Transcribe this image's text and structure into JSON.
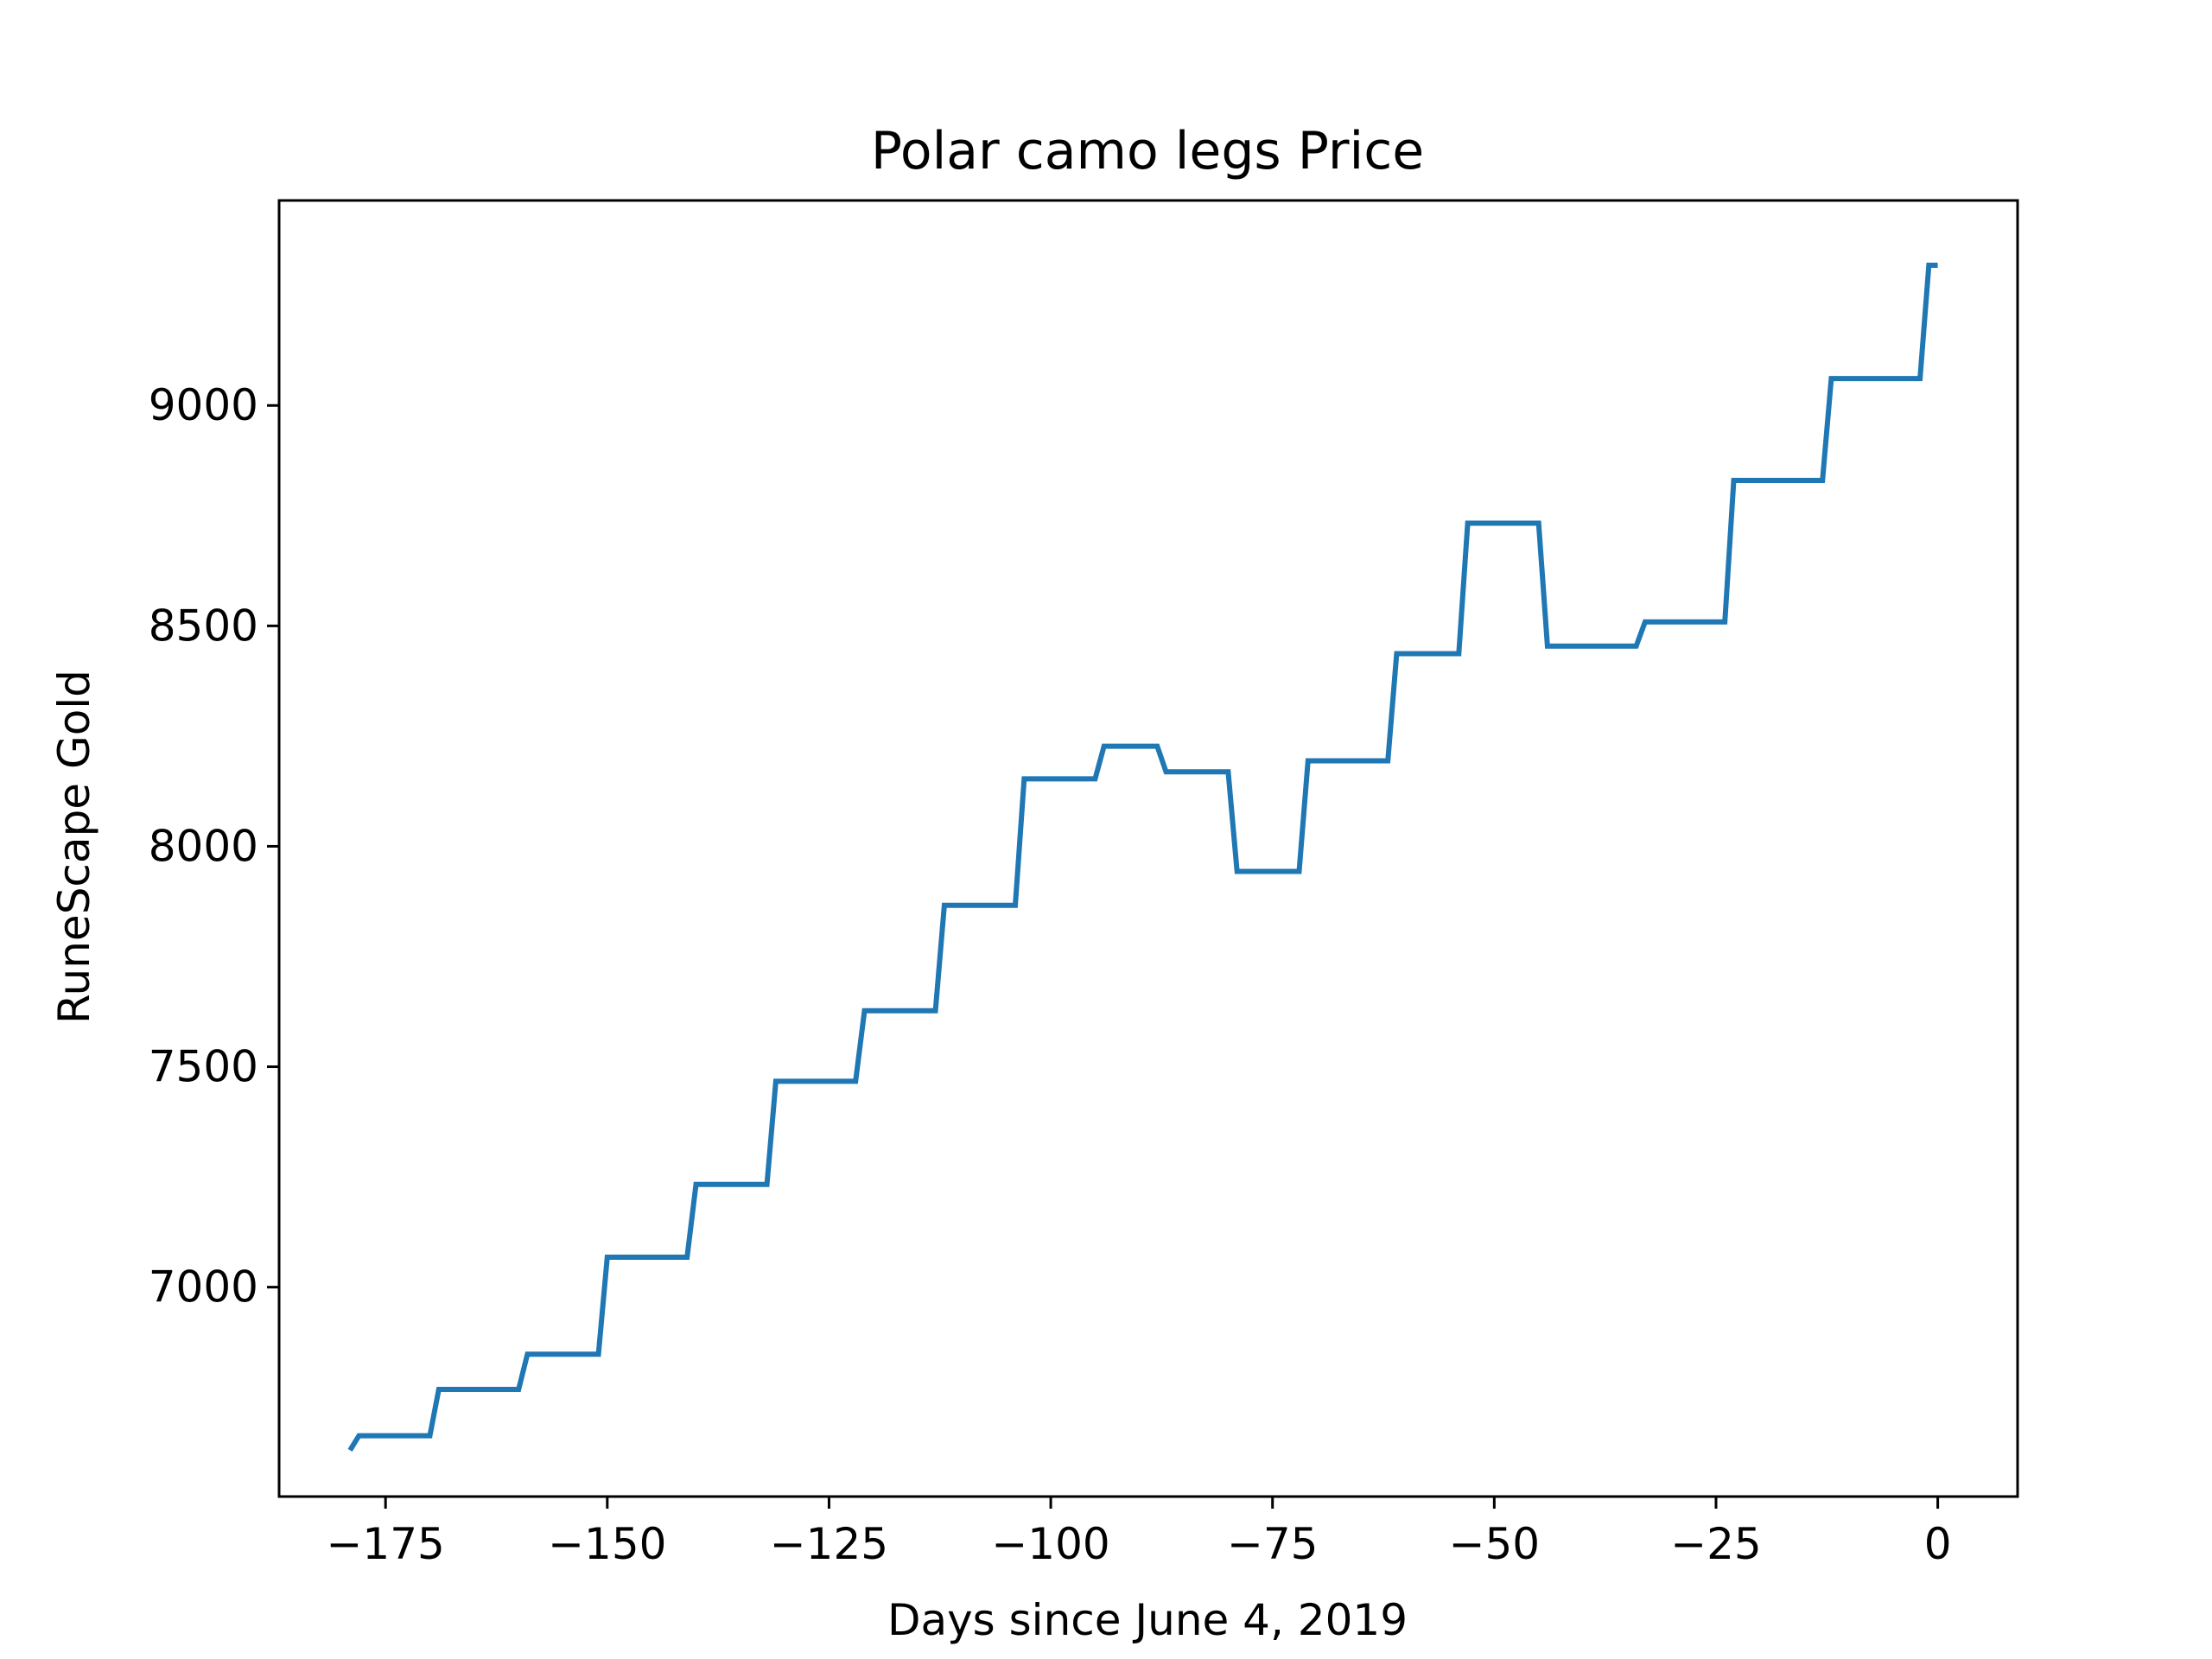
{
  "chart_data": {
    "type": "line",
    "title": "Polar camo legs Price",
    "xlabel": "Days since June 4, 2019",
    "ylabel": "RuneScape Gold",
    "xlim": [
      -187,
      9
    ],
    "ylim": [
      6525,
      9465
    ],
    "x_ticks": [
      -175,
      -150,
      -125,
      -100,
      -75,
      -50,
      -25,
      0
    ],
    "x_tick_labels": [
      "−175",
      "−150",
      "−125",
      "−100",
      "−75",
      "−50",
      "−25",
      "0"
    ],
    "y_ticks": [
      7000,
      7500,
      8000,
      8500,
      9000
    ],
    "y_tick_labels": [
      "7000",
      "7500",
      "8000",
      "8500",
      "9000"
    ],
    "grid": false,
    "series": [
      {
        "color": "#1f77b4",
        "points": [
          [
            -179,
            6630
          ],
          [
            -178,
            6663
          ],
          [
            -170,
            6663
          ],
          [
            -169,
            6768
          ],
          [
            -160,
            6768
          ],
          [
            -159,
            6848
          ],
          [
            -151,
            6848
          ],
          [
            -150,
            7068
          ],
          [
            -141,
            7068
          ],
          [
            -140,
            7233
          ],
          [
            -132,
            7233
          ],
          [
            -131,
            7467
          ],
          [
            -122,
            7467
          ],
          [
            -121,
            7627
          ],
          [
            -113,
            7627
          ],
          [
            -112,
            7866
          ],
          [
            -104,
            7866
          ],
          [
            -103,
            8153
          ],
          [
            -95,
            8153
          ],
          [
            -94,
            8227
          ],
          [
            -88,
            8227
          ],
          [
            -87,
            8169
          ],
          [
            -80,
            8169
          ],
          [
            -79,
            7943
          ],
          [
            -72,
            7943
          ],
          [
            -71,
            8194
          ],
          [
            -62,
            8194
          ],
          [
            -61,
            8437
          ],
          [
            -54,
            8437
          ],
          [
            -53,
            8733
          ],
          [
            -45,
            8733
          ],
          [
            -44,
            8454
          ],
          [
            -34,
            8454
          ],
          [
            -33,
            8509
          ],
          [
            -24,
            8509
          ],
          [
            -23,
            8830
          ],
          [
            -13,
            8830
          ],
          [
            -12,
            9061
          ],
          [
            -2,
            9061
          ],
          [
            -1,
            9318
          ],
          [
            0,
            9318
          ]
        ]
      }
    ]
  }
}
